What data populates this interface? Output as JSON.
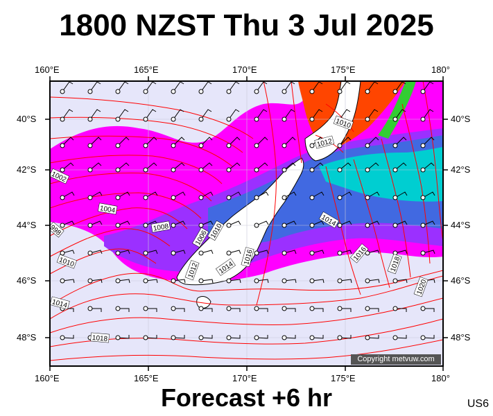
{
  "header": {
    "title": "1800 NZST Thu 3 Jul 2025"
  },
  "footer": {
    "forecast": "Forecast +6 hr",
    "code": "US6",
    "copyright": "Copyright metvuw.com"
  },
  "axes": {
    "lon_top": [
      "160°E",
      "165°E",
      "170°E",
      "175°E",
      "180°"
    ],
    "lon_bottom": [
      "160°E",
      "165°E",
      "170°E",
      "175°E",
      "180°"
    ],
    "lat_left": [
      "40°S",
      "42°S",
      "44°S",
      "46°S",
      "48°S"
    ],
    "lat_right": [
      "40°S",
      "42°S",
      "44°S",
      "46°S",
      "48°S"
    ]
  },
  "isobars": {
    "labels": [
      "1002",
      "1004",
      "1006",
      "1008",
      "1010",
      "1010",
      "1010",
      "1012",
      "1012",
      "1014",
      "1014",
      "1014",
      "1016",
      "1016",
      "1018",
      "1018",
      "1020",
      "998"
    ]
  },
  "colors": {
    "background": "#e6e6fa",
    "isobar": "#ff0000",
    "rain_heavy": "#ff4500",
    "rain_mid": "#4169e1",
    "rain_light": "#ff00ff",
    "land": "#ffffff"
  }
}
